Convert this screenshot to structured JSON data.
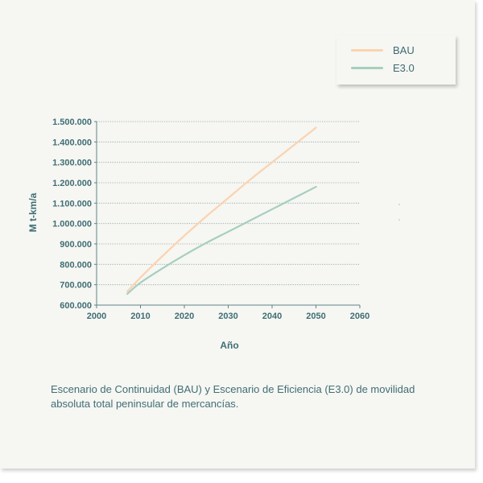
{
  "chart_data": {
    "type": "line",
    "xlabel": "Año",
    "ylabel": "M t-km/a",
    "xlim": [
      2000,
      2060
    ],
    "ylim": [
      600000,
      1500000
    ],
    "xticks": [
      2000,
      2010,
      2020,
      2030,
      2040,
      2050,
      2060
    ],
    "yticks": [
      600000,
      700000,
      800000,
      900000,
      1000000,
      1100000,
      1200000,
      1300000,
      1400000,
      1500000
    ],
    "xtick_labels": [
      "2000",
      "2010",
      "2020",
      "2030",
      "2040",
      "2050",
      "2060"
    ],
    "ytick_labels": [
      "600.000",
      "700.000",
      "800.000",
      "900.000",
      "1.000.000",
      "1.100.000",
      "1.200.000",
      "1.300.000",
      "1.400.000",
      "1.500.000"
    ],
    "grid": "horizontal-dotted",
    "legend_position": "top-right",
    "series": [
      {
        "name": "BAU",
        "color": "#fbd3b0",
        "x": [
          2007,
          2010,
          2015,
          2020,
          2025,
          2030,
          2035,
          2040,
          2045,
          2050
        ],
        "y": [
          667000,
          735000,
          840000,
          940000,
          1035000,
          1125000,
          1215000,
          1300000,
          1385000,
          1470000
        ]
      },
      {
        "name": "E3.0",
        "color": "#a6cfc0",
        "x": [
          2007,
          2010,
          2015,
          2020,
          2025,
          2030,
          2035,
          2040,
          2045,
          2050
        ],
        "y": [
          655000,
          710000,
          780000,
          845000,
          905000,
          960000,
          1015000,
          1070000,
          1125000,
          1180000
        ]
      }
    ]
  },
  "caption": "Escenario de Continuidad (BAU) y Escenario de Eficiencia (E3.0) de movilidad absoluta total peninsular de mercancías."
}
